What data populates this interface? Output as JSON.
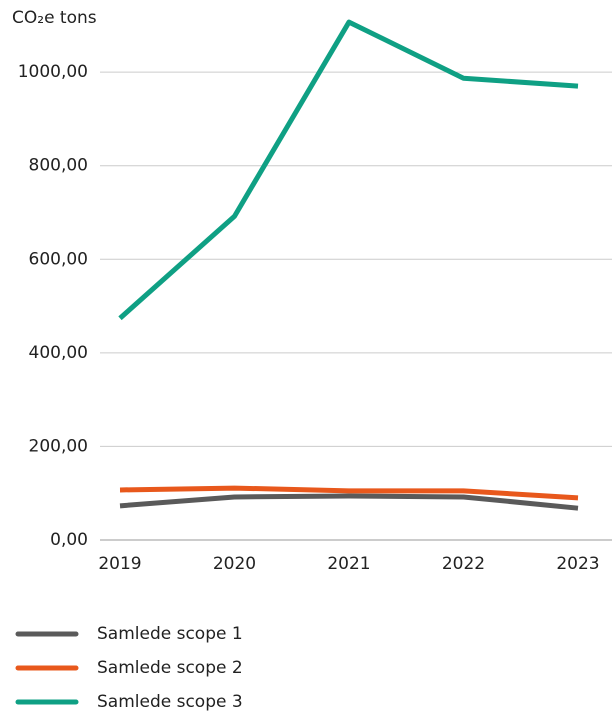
{
  "chart_data": {
    "type": "line",
    "y_label": "CO₂e tons",
    "categories": [
      "2019",
      "2020",
      "2021",
      "2022",
      "2023"
    ],
    "series": [
      {
        "name": "Samlede scope 1",
        "color": "#5a5a5a",
        "values": [
          73,
          92,
          94,
          92,
          68
        ]
      },
      {
        "name": "Samlede scope 2",
        "color": "#e8581c",
        "values": [
          107,
          111,
          105,
          105,
          90
        ]
      },
      {
        "name": "Samlede scope 3",
        "color": "#0fa084",
        "values": [
          474,
          692,
          1107,
          987,
          970
        ]
      }
    ],
    "ylim": [
      0,
      1120
    ],
    "yticks": [
      {
        "value": 0,
        "label": "0,00"
      },
      {
        "value": 200,
        "label": "200,00"
      },
      {
        "value": 400,
        "label": "400,00"
      },
      {
        "value": 600,
        "label": "600,00"
      },
      {
        "value": 800,
        "label": "800,00"
      },
      {
        "value": 1000,
        "label": "1000,00"
      }
    ],
    "grid": true,
    "legend": "bottom"
  }
}
